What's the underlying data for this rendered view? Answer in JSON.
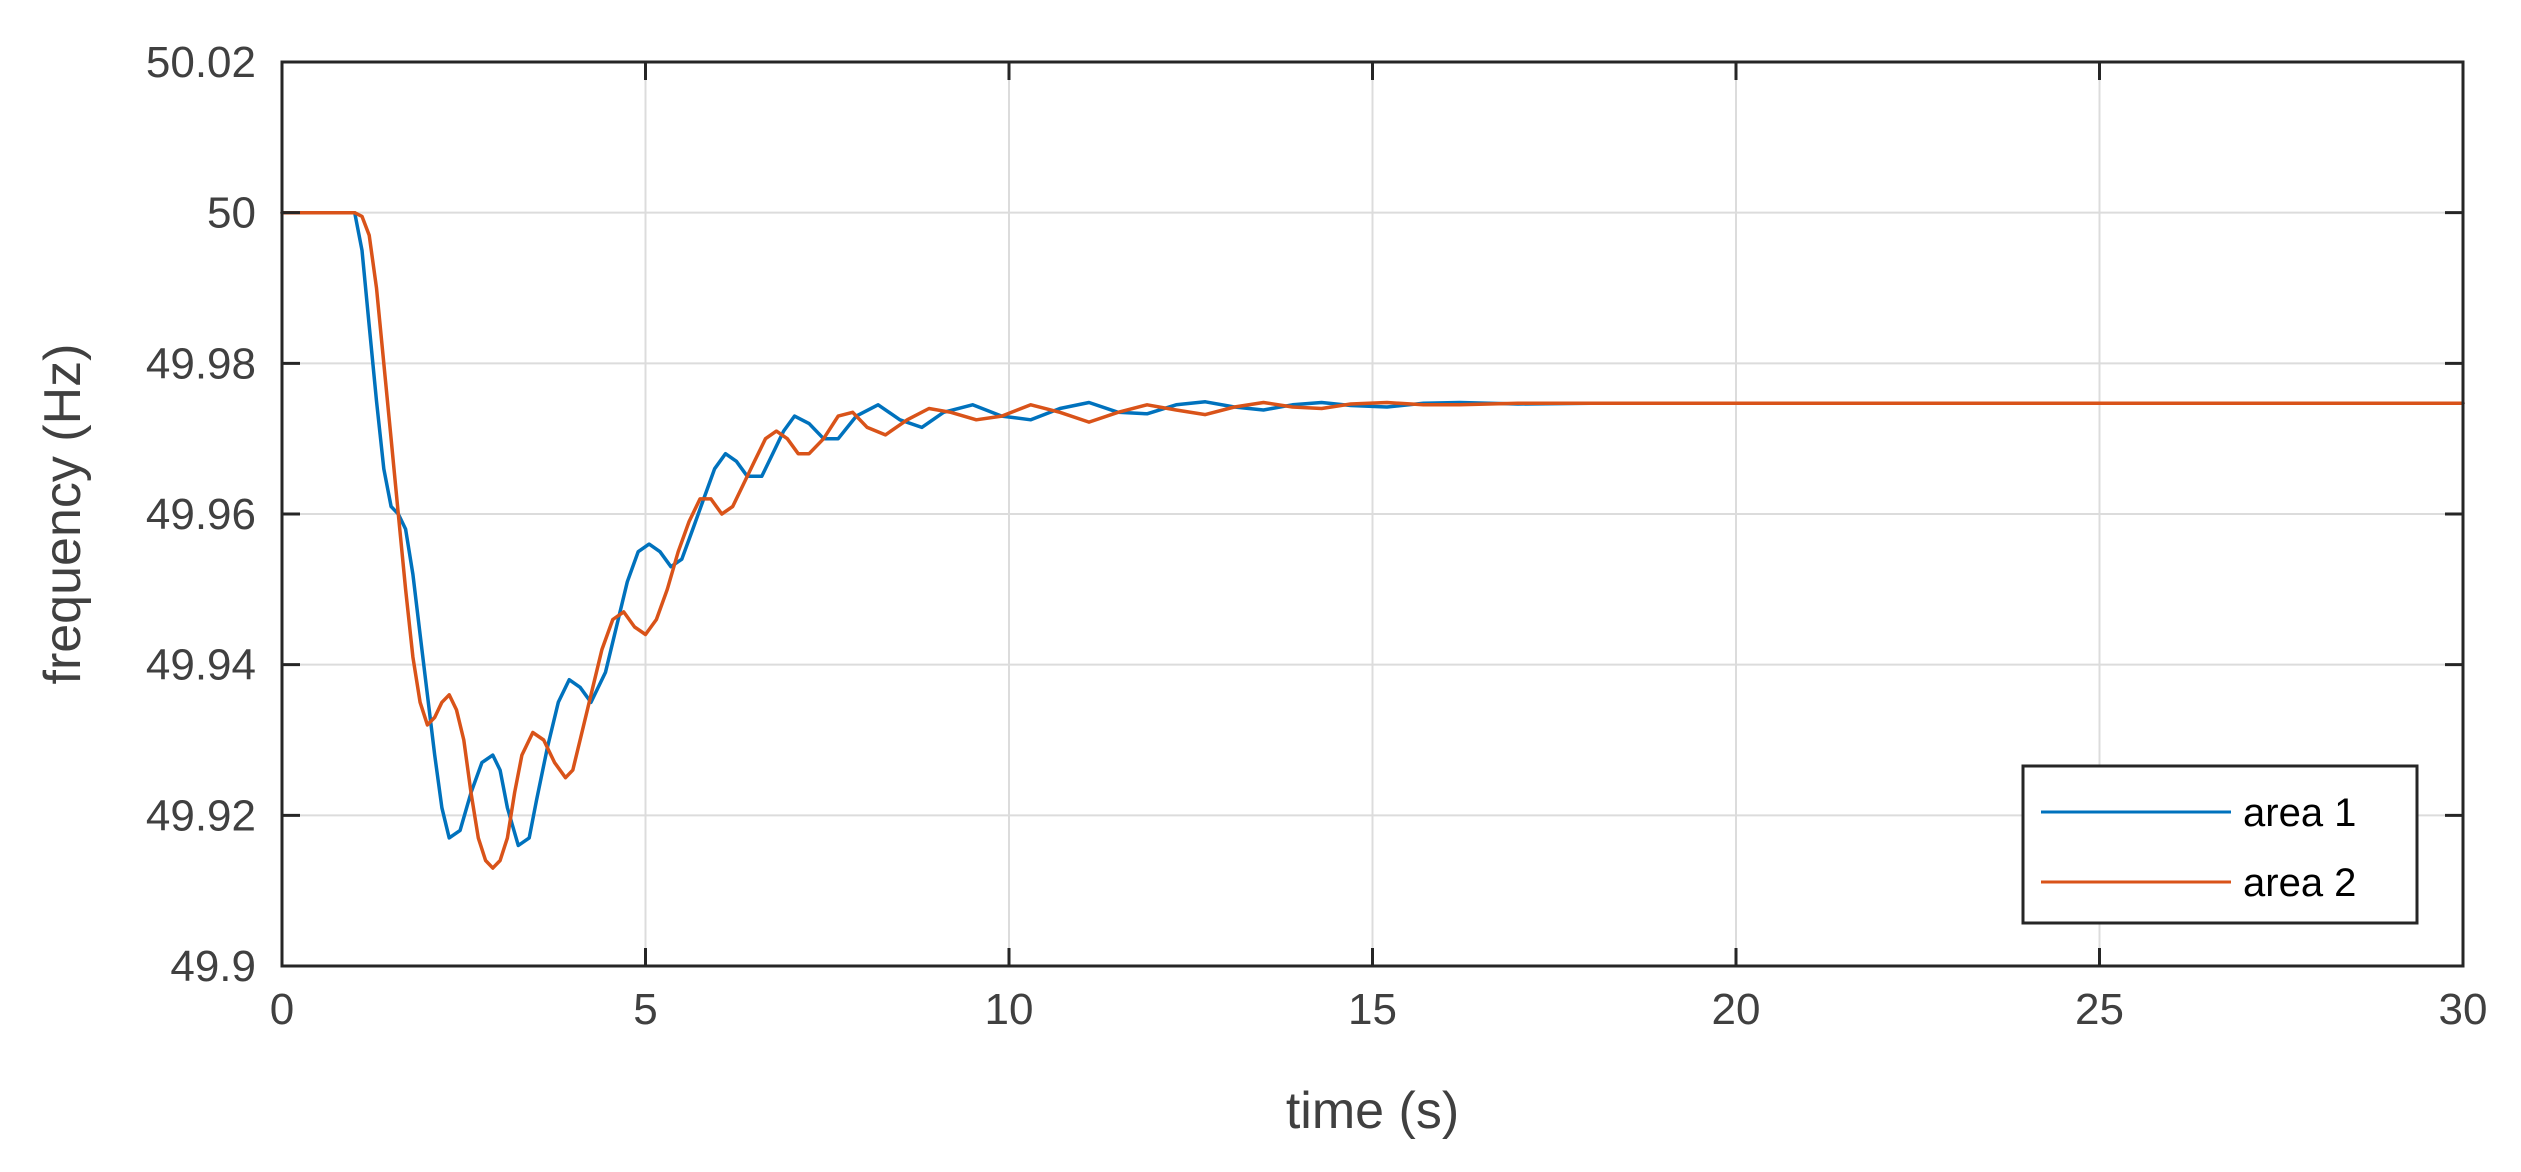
{
  "chart_data": {
    "type": "line",
    "xlabel": "time (s)",
    "ylabel": "frequency (Hz)",
    "xlim": [
      0,
      30
    ],
    "ylim": [
      49.9,
      50.02
    ],
    "x_ticks": [
      0,
      5,
      10,
      15,
      20,
      25,
      30
    ],
    "x_tick_labels": [
      "0",
      "5",
      "10",
      "15",
      "20",
      "25",
      "30"
    ],
    "y_ticks": [
      49.9,
      49.92,
      49.94,
      49.96,
      49.98,
      50,
      50.02
    ],
    "y_tick_labels": [
      "49.9",
      "49.92",
      "49.94",
      "49.96",
      "49.98",
      "50",
      "50.02"
    ],
    "grid": true,
    "legend_position": "bottom-right",
    "series": [
      {
        "name": "area 1",
        "color": "#0072BD",
        "x": [
          0,
          1.0,
          1.1,
          1.2,
          1.3,
          1.4,
          1.5,
          1.6,
          1.7,
          1.8,
          1.9,
          2.0,
          2.1,
          2.2,
          2.3,
          2.45,
          2.6,
          2.75,
          2.9,
          3.0,
          3.1,
          3.25,
          3.4,
          3.5,
          3.65,
          3.8,
          3.95,
          4.1,
          4.25,
          4.45,
          4.6,
          4.75,
          4.9,
          5.05,
          5.2,
          5.35,
          5.5,
          5.65,
          5.8,
          5.95,
          6.1,
          6.25,
          6.4,
          6.6,
          6.75,
          6.9,
          7.05,
          7.25,
          7.45,
          7.65,
          7.9,
          8.2,
          8.5,
          8.8,
          9.1,
          9.5,
          9.9,
          10.3,
          10.7,
          11.1,
          11.5,
          11.9,
          12.3,
          12.7,
          13.1,
          13.5,
          13.9,
          14.3,
          14.7,
          15.2,
          15.7,
          16.2,
          17.0,
          18.0,
          20.0,
          22.0,
          25.0,
          30.0
        ],
        "y": [
          50.0,
          50.0,
          49.995,
          49.985,
          49.975,
          49.966,
          49.961,
          49.96,
          49.958,
          49.952,
          49.944,
          49.936,
          49.928,
          49.921,
          49.917,
          49.918,
          49.923,
          49.927,
          49.928,
          49.926,
          49.921,
          49.916,
          49.917,
          49.922,
          49.929,
          49.935,
          49.938,
          49.937,
          49.935,
          49.939,
          49.945,
          49.951,
          49.955,
          49.956,
          49.955,
          49.953,
          49.954,
          49.958,
          49.962,
          49.966,
          49.968,
          49.967,
          49.965,
          49.965,
          49.968,
          49.971,
          49.973,
          49.972,
          49.97,
          49.97,
          49.973,
          49.9745,
          49.9725,
          49.9715,
          49.9735,
          49.9745,
          49.973,
          49.9725,
          49.974,
          49.9748,
          49.9735,
          49.9733,
          49.9745,
          49.9749,
          49.9742,
          49.9738,
          49.9745,
          49.9748,
          49.9744,
          49.9742,
          49.9747,
          49.9748,
          49.9746,
          49.9747,
          49.9747,
          49.9747,
          49.9747,
          49.9747
        ]
      },
      {
        "name": "area 2",
        "color": "#D95319",
        "x": [
          0,
          1.0,
          1.1,
          1.2,
          1.3,
          1.4,
          1.5,
          1.6,
          1.7,
          1.8,
          1.9,
          2.0,
          2.1,
          2.2,
          2.3,
          2.4,
          2.5,
          2.6,
          2.7,
          2.8,
          2.9,
          3.0,
          3.1,
          3.2,
          3.3,
          3.45,
          3.6,
          3.75,
          3.9,
          4.0,
          4.1,
          4.25,
          4.4,
          4.55,
          4.7,
          4.85,
          5.0,
          5.15,
          5.3,
          5.45,
          5.6,
          5.75,
          5.9,
          6.05,
          6.2,
          6.35,
          6.5,
          6.65,
          6.8,
          6.95,
          7.1,
          7.25,
          7.45,
          7.65,
          7.85,
          8.05,
          8.3,
          8.6,
          8.9,
          9.2,
          9.55,
          9.9,
          10.3,
          10.7,
          11.1,
          11.5,
          11.9,
          12.3,
          12.7,
          13.1,
          13.5,
          13.9,
          14.3,
          14.7,
          15.2,
          15.7,
          16.2,
          17.0,
          18.0,
          20.0,
          22.0,
          25.0,
          30.0
        ],
        "y": [
          50.0,
          50.0,
          49.9995,
          49.997,
          49.99,
          49.98,
          49.97,
          49.96,
          49.95,
          49.941,
          49.935,
          49.932,
          49.933,
          49.935,
          49.936,
          49.934,
          49.93,
          49.923,
          49.917,
          49.914,
          49.913,
          49.914,
          49.917,
          49.923,
          49.928,
          49.931,
          49.93,
          49.927,
          49.925,
          49.926,
          49.93,
          49.936,
          49.942,
          49.946,
          49.947,
          49.945,
          49.944,
          49.946,
          49.95,
          49.955,
          49.959,
          49.962,
          49.962,
          49.96,
          49.961,
          49.964,
          49.967,
          49.97,
          49.971,
          49.97,
          49.968,
          49.968,
          49.97,
          49.973,
          49.9735,
          49.9715,
          49.9705,
          49.9725,
          49.974,
          49.9735,
          49.9725,
          49.973,
          49.9745,
          49.9735,
          49.9722,
          49.9735,
          49.9745,
          49.9738,
          49.9732,
          49.9742,
          49.9748,
          49.9742,
          49.974,
          49.9746,
          49.9748,
          49.9745,
          49.9745,
          49.9747,
          49.9747,
          49.9747,
          49.9747,
          49.9747,
          49.9747
        ]
      }
    ]
  }
}
